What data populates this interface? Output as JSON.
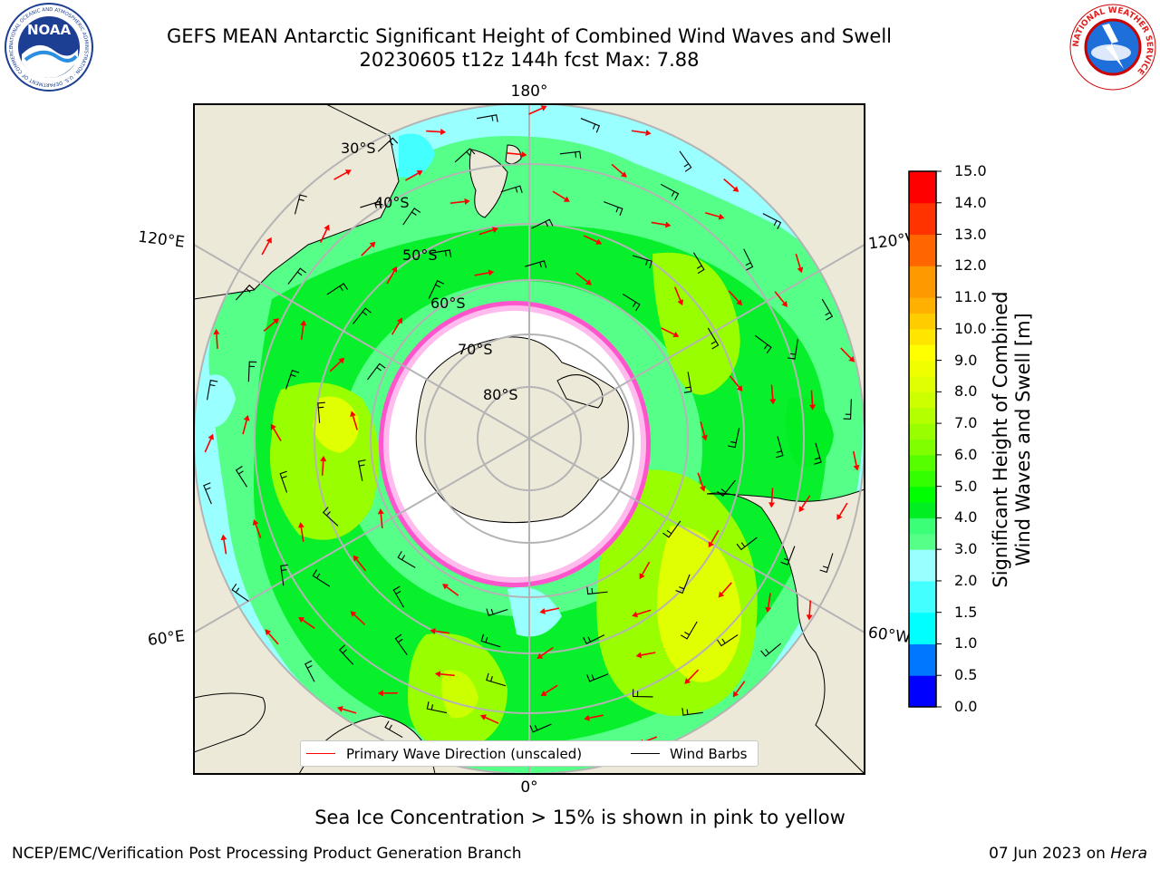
{
  "header": {
    "title_line1": "GEFS MEAN Antarctic Significant Height of Combined Wind Waves and Swell",
    "title_line2": "20230605 t12z 144h fcst   Max: 7.88"
  },
  "logos": {
    "noaa_text": "NOAA",
    "noaa_ring_text": "NATIONAL OCEANIC AND ATMOSPHERIC ADMINISTRATION · U.S. DEPARTMENT OF COMMERCE",
    "nws_ring_text": "NATIONAL WEATHER SERVICE"
  },
  "map": {
    "projection": "south-polar-stereographic",
    "longitude_labels": {
      "top": "180°",
      "bottom": "0°",
      "left_upper": "120°E",
      "left_lower": "60°E",
      "right_upper": "120°W",
      "right_lower": "60°W"
    },
    "latitude_labels": [
      "30°S",
      "40°S",
      "50°S",
      "60°S",
      "70°S",
      "80°S"
    ],
    "colors": {
      "land": "#ede9d9",
      "ice": "#ffffff",
      "ice_edge": "#ff55cc",
      "gridline": "#b4b4b4",
      "arrow": "#ff0000",
      "barb": "#000000"
    }
  },
  "colorbar": {
    "label_line1": "Significant Height of Combined",
    "label_line2": "Wind Waves and Swell [m]",
    "ticks": [
      "15.0",
      "14.0",
      "13.0",
      "12.0",
      "11.0",
      "10.0",
      "9.0",
      "8.0",
      "7.0",
      "6.0",
      "5.0",
      "4.0",
      "3.0",
      "2.0",
      "1.5",
      "1.0",
      "0.5",
      "0.0"
    ],
    "bins": [
      {
        "from": 14.0,
        "color": "#ff0000"
      },
      {
        "from": 13.0,
        "color": "#ff3300"
      },
      {
        "from": 12.0,
        "color": "#ff6600"
      },
      {
        "from": 11.0,
        "color": "#ff9900"
      },
      {
        "from": 10.5,
        "color": "#ffb000"
      },
      {
        "from": 10.0,
        "color": "#ffcc00"
      },
      {
        "from": 9.5,
        "color": "#ffe600"
      },
      {
        "from": 9.0,
        "color": "#ffff00"
      },
      {
        "from": 8.5,
        "color": "#f0ff00"
      },
      {
        "from": 8.0,
        "color": "#e0ff00"
      },
      {
        "from": 7.5,
        "color": "#ccff00"
      },
      {
        "from": 7.0,
        "color": "#b4ff00"
      },
      {
        "from": 6.5,
        "color": "#99ff00"
      },
      {
        "from": 6.0,
        "color": "#80ff00"
      },
      {
        "from": 5.5,
        "color": "#55ff00"
      },
      {
        "from": 5.0,
        "color": "#33ff00"
      },
      {
        "from": 4.5,
        "color": "#00ff00"
      },
      {
        "from": 4.0,
        "color": "#00ee22"
      },
      {
        "from": 3.5,
        "color": "#3cff78"
      },
      {
        "from": 3.0,
        "color": "#55ff88"
      },
      {
        "from": 2.5,
        "color": "#99ffff"
      },
      {
        "from": 2.0,
        "color": "#99ffff"
      },
      {
        "from": 1.5,
        "color": "#44ffff"
      },
      {
        "from": 1.0,
        "color": "#00ffff"
      },
      {
        "from": 0.5,
        "color": "#0077ff"
      },
      {
        "from": 0.0,
        "color": "#0000ff"
      }
    ]
  },
  "legend": {
    "wave_label": "Primary Wave Direction (unscaled)",
    "wind_label": "Wind Barbs",
    "wave_color": "#ff0000",
    "wind_color": "#000000"
  },
  "note": "Sea Ice Concentration > 15% is shown in pink to yellow",
  "footer": {
    "left": "NCEP/EMC/Verification Post Processing Product Generation Branch",
    "date": "07 Jun 2023 on ",
    "machine": "Hera"
  }
}
